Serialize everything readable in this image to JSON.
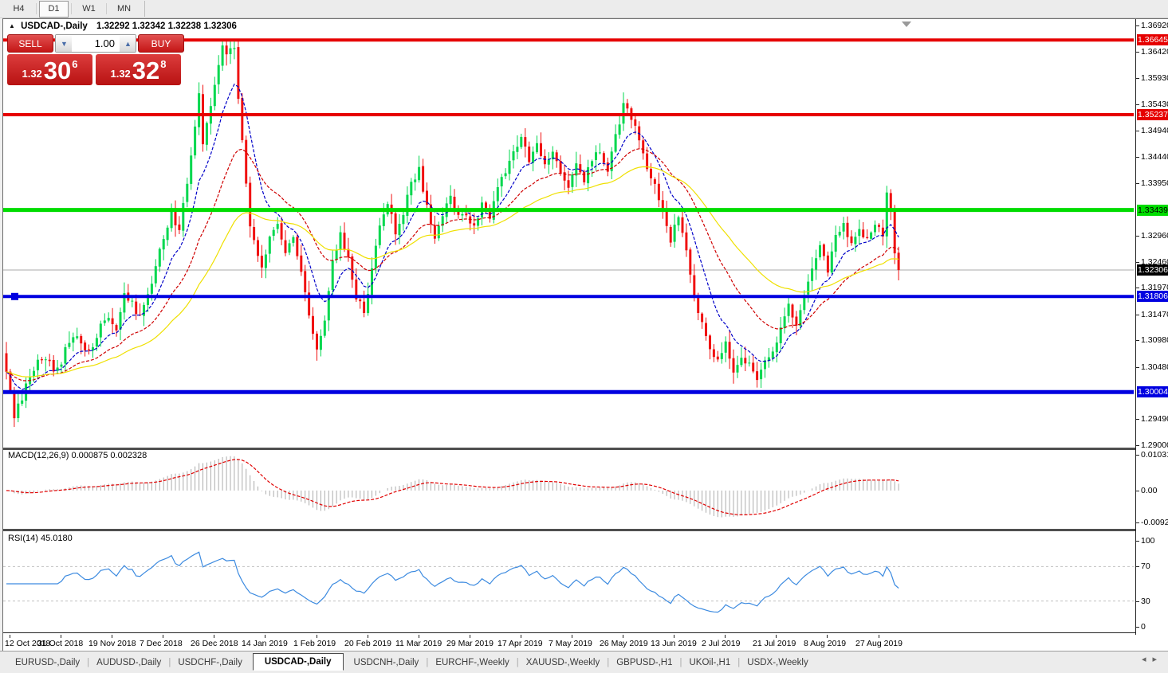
{
  "toolbar": {
    "timeframes": [
      {
        "label": "H4",
        "active": false
      },
      {
        "label": "D1",
        "active": true
      },
      {
        "label": "W1",
        "active": false
      },
      {
        "label": "MN",
        "active": false
      }
    ]
  },
  "chart": {
    "title": {
      "arrow_icon": "▲",
      "symbol": "USDCAD-,Daily",
      "ohlc": "1.32292 1.32342 1.32238 1.32306"
    },
    "trade_panel": {
      "sell_label": "SELL",
      "buy_label": "BUY",
      "volume": "1.00",
      "volume_down_icon": "▼",
      "volume_up_icon": "▲",
      "sell_price": {
        "prefix": "1.32",
        "big": "30",
        "sup": "6"
      },
      "buy_price": {
        "prefix": "1.32",
        "big": "32",
        "sup": "8"
      }
    }
  },
  "macd_panel": {
    "label": "MACD(12,26,9) 0.000875 0.002328",
    "axis": [
      "0.010311",
      "0.00",
      "-0.009203"
    ]
  },
  "rsi_panel": {
    "label": "RSI(14) 45.0180",
    "axis": [
      "100",
      "70",
      "30",
      "0"
    ]
  },
  "tabs": [
    {
      "label": "EURUSD-,Daily",
      "active": false
    },
    {
      "label": "AUDUSD-,Daily",
      "active": false
    },
    {
      "label": "USDCHF-,Daily",
      "active": false
    },
    {
      "label": "USDCAD-,Daily",
      "active": true
    },
    {
      "label": "USDCNH-,Daily",
      "active": false
    },
    {
      "label": "EURCHF-,Weekly",
      "active": false
    },
    {
      "label": "XAUUSD-,Weekly",
      "active": false
    },
    {
      "label": "GBPUSD-,H1",
      "active": false
    },
    {
      "label": "UKOil-,H1",
      "active": false
    },
    {
      "label": "USDX-,Weekly",
      "active": false
    }
  ],
  "tab_nav": {
    "left_icon": "◂",
    "right_icon": "▸"
  },
  "chart_data": {
    "type": "candlestick",
    "symbol": "USDCAD-",
    "timeframe": "Daily",
    "current_ohlc": {
      "open": 1.32292,
      "high": 1.32342,
      "low": 1.32238,
      "close": 1.32306
    },
    "bid": 1.32306,
    "ask": 1.32328,
    "candle_count": 228,
    "last_close": 1.32306,
    "price_axis": {
      "max": 1.3692,
      "min": 1.29,
      "plain_ticks": [
        "1.36920",
        "1.36420",
        "1.35930",
        "1.35430",
        "1.34940",
        "1.34440",
        "1.33950",
        "1.32960",
        "1.32460",
        "1.31970",
        "1.31470",
        "1.30980",
        "1.30480",
        "1.29490",
        "1.29000"
      ]
    },
    "current_price_line": {
      "value": 1.32306,
      "label": "1.32306",
      "line_color": "#A8A8A8",
      "label_bg": "#000000",
      "label_text": "#ffffff"
    },
    "horizontal_levels": [
      {
        "value": 1.36645,
        "label": "1.36645",
        "color": "#E60000",
        "text": "#ffffff",
        "thickness": 4
      },
      {
        "value": 1.35237,
        "label": "1.35237",
        "color": "#E60000",
        "text": "#ffffff",
        "thickness": 4
      },
      {
        "value": 1.33439,
        "label": "1.33439",
        "color": "#00DC00",
        "text": "#000000",
        "thickness": 5
      },
      {
        "value": 1.31806,
        "label": "1.31806",
        "color": "#0000E0",
        "text": "#ffffff",
        "thickness": 4
      },
      {
        "value": 1.30004,
        "label": "1.30004",
        "color": "#0000E0",
        "text": "#ffffff",
        "thickness": 5
      }
    ],
    "x_labels": [
      "12 Oct 2018",
      "31 Oct 2018",
      "19 Nov 2018",
      "7 Dec 2018",
      "26 Dec 2018",
      "14 Jan 2019",
      "1 Feb 2019",
      "20 Feb 2019",
      "11 Mar 2019",
      "29 Mar 2019",
      "17 Apr 2019",
      "7 May 2019",
      "26 May 2019",
      "13 Jun 2019",
      "2 Jul 2019",
      "21 Jul 2019",
      "8 Aug 2019",
      "27 Aug 2019"
    ],
    "candles_per_x_label": 13,
    "price_anchors": [
      [
        0,
        1.3035
      ],
      [
        2,
        1.2955
      ],
      [
        4,
        1.299
      ],
      [
        6,
        1.303
      ],
      [
        8,
        1.3055
      ],
      [
        10,
        1.307
      ],
      [
        12,
        1.3045
      ],
      [
        14,
        1.306
      ],
      [
        16,
        1.3095
      ],
      [
        18,
        1.311
      ],
      [
        20,
        1.3075
      ],
      [
        22,
        1.309
      ],
      [
        24,
        1.3125
      ],
      [
        26,
        1.314
      ],
      [
        28,
        1.311
      ],
      [
        30,
        1.319
      ],
      [
        32,
        1.3165
      ],
      [
        34,
        1.314
      ],
      [
        36,
        1.3185
      ],
      [
        38,
        1.324
      ],
      [
        40,
        1.329
      ],
      [
        42,
        1.334
      ],
      [
        44,
        1.33
      ],
      [
        46,
        1.34
      ],
      [
        48,
        1.35
      ],
      [
        49,
        1.356
      ],
      [
        50,
        1.347
      ],
      [
        52,
        1.354
      ],
      [
        54,
        1.361
      ],
      [
        55,
        1.365
      ],
      [
        56,
        1.364
      ],
      [
        57,
        1.3655
      ],
      [
        58,
        1.3645
      ],
      [
        59,
        1.356
      ],
      [
        60,
        1.348
      ],
      [
        61,
        1.339
      ],
      [
        62,
        1.332
      ],
      [
        63,
        1.328
      ],
      [
        65,
        1.323
      ],
      [
        67,
        1.329
      ],
      [
        69,
        1.331
      ],
      [
        71,
        1.326
      ],
      [
        73,
        1.3295
      ],
      [
        75,
        1.322
      ],
      [
        77,
        1.315
      ],
      [
        79,
        1.3085
      ],
      [
        81,
        1.314
      ],
      [
        83,
        1.325
      ],
      [
        85,
        1.33
      ],
      [
        87,
        1.325
      ],
      [
        89,
        1.318
      ],
      [
        91,
        1.315
      ],
      [
        93,
        1.323
      ],
      [
        95,
        1.331
      ],
      [
        97,
        1.336
      ],
      [
        99,
        1.33
      ],
      [
        101,
        1.334
      ],
      [
        103,
        1.339
      ],
      [
        105,
        1.342
      ],
      [
        107,
        1.335
      ],
      [
        109,
        1.329
      ],
      [
        111,
        1.333
      ],
      [
        113,
        1.337
      ],
      [
        115,
        1.333
      ],
      [
        117,
        1.334
      ],
      [
        119,
        1.331
      ],
      [
        121,
        1.336
      ],
      [
        123,
        1.333
      ],
      [
        125,
        1.338
      ],
      [
        127,
        1.342
      ],
      [
        129,
        1.345
      ],
      [
        131,
        1.348
      ],
      [
        133,
        1.344
      ],
      [
        135,
        1.347
      ],
      [
        137,
        1.343
      ],
      [
        139,
        1.346
      ],
      [
        141,
        1.342
      ],
      [
        143,
        1.339
      ],
      [
        145,
        1.343
      ],
      [
        147,
        1.34
      ],
      [
        149,
        1.344
      ],
      [
        151,
        1.346
      ],
      [
        153,
        1.342
      ],
      [
        155,
        1.348
      ],
      [
        157,
        1.354
      ],
      [
        159,
        1.352
      ],
      [
        161,
        1.348
      ],
      [
        163,
        1.342
      ],
      [
        165,
        1.339
      ],
      [
        167,
        1.334
      ],
      [
        169,
        1.329
      ],
      [
        171,
        1.333
      ],
      [
        173,
        1.327
      ],
      [
        175,
        1.318
      ],
      [
        177,
        1.313
      ],
      [
        179,
        1.308
      ],
      [
        181,
        1.306
      ],
      [
        183,
        1.309
      ],
      [
        185,
        1.304
      ],
      [
        187,
        1.307
      ],
      [
        189,
        1.305
      ],
      [
        191,
        1.303
      ],
      [
        193,
        1.306
      ],
      [
        195,
        1.308
      ],
      [
        197,
        1.312
      ],
      [
        199,
        1.316
      ],
      [
        201,
        1.313
      ],
      [
        203,
        1.319
      ],
      [
        205,
        1.324
      ],
      [
        207,
        1.328
      ],
      [
        209,
        1.323
      ],
      [
        211,
        1.329
      ],
      [
        213,
        1.332
      ],
      [
        215,
        1.328
      ],
      [
        217,
        1.331
      ],
      [
        219,
        1.329
      ],
      [
        221,
        1.332
      ],
      [
        223,
        1.33
      ],
      [
        224,
        1.3375
      ],
      [
        225,
        1.334
      ],
      [
        226,
        1.3255
      ],
      [
        227,
        1.32306
      ]
    ],
    "colors": {
      "up": "#00D74E",
      "down": "#F01212"
    },
    "moving_averages": [
      {
        "period": 10,
        "color": "#0000C8",
        "style": "dashed"
      },
      {
        "period": 25,
        "color": "#CF0000",
        "style": "dashed"
      },
      {
        "period": 50,
        "color": "#EFE000",
        "style": "solid"
      }
    ],
    "macd": {
      "params": [
        12,
        26,
        9
      ],
      "current_values": [
        0.000875,
        0.002328
      ],
      "axis_max": 0.010311,
      "axis_min": -0.009203,
      "histogram_color": "#ACACAC",
      "signal_color": "#E00000"
    },
    "rsi": {
      "period": 14,
      "current_value": 45.018,
      "levels": [
        70,
        30
      ],
      "axis": [
        100,
        70,
        30,
        0
      ],
      "line_color": "#3D8BE0"
    }
  }
}
